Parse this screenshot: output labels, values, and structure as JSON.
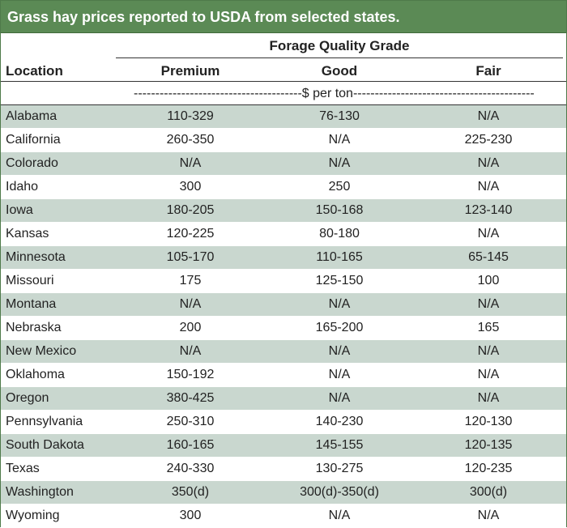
{
  "title": "Grass hay prices reported to USDA from selected states.",
  "header": {
    "group": "Forage Quality Grade",
    "location": "Location",
    "premium": "Premium",
    "good": "Good",
    "fair": "Fair"
  },
  "units": "---------------------------------------$ per ton------------------------------------------",
  "rows": [
    {
      "location": "Alabama",
      "premium": "110-329",
      "good": "76-130",
      "fair": "N/A"
    },
    {
      "location": "California",
      "premium": "260-350",
      "good": "N/A",
      "fair": "225-230"
    },
    {
      "location": "Colorado",
      "premium": "N/A",
      "good": "N/A",
      "fair": "N/A"
    },
    {
      "location": "Idaho",
      "premium": "300",
      "good": "250",
      "fair": "N/A"
    },
    {
      "location": "Iowa",
      "premium": "180-205",
      "good": "150-168",
      "fair": "123-140"
    },
    {
      "location": "Kansas",
      "premium": "120-225",
      "good": "80-180",
      "fair": "N/A"
    },
    {
      "location": "Minnesota",
      "premium": "105-170",
      "good": "110-165",
      "fair": "65-145"
    },
    {
      "location": "Missouri",
      "premium": "175",
      "good": "125-150",
      "fair": "100"
    },
    {
      "location": "Montana",
      "premium": "N/A",
      "good": "N/A",
      "fair": "N/A"
    },
    {
      "location": "Nebraska",
      "premium": "200",
      "good": "165-200",
      "fair": "165"
    },
    {
      "location": "New Mexico",
      "premium": "N/A",
      "good": "N/A",
      "fair": "N/A"
    },
    {
      "location": "Oklahoma",
      "premium": "150-192",
      "good": "N/A",
      "fair": "N/A"
    },
    {
      "location": "Oregon",
      "premium": "380-425",
      "good": "N/A",
      "fair": "N/A"
    },
    {
      "location": "Pennsylvania",
      "premium": "250-310",
      "good": "140-230",
      "fair": "120-130"
    },
    {
      "location": "South Dakota",
      "premium": "160-165",
      "good": "145-155",
      "fair": "120-135"
    },
    {
      "location": "Texas",
      "premium": "240-330",
      "good": "130-275",
      "fair": "120-235"
    },
    {
      "location": "Washington",
      "premium": "350(d)",
      "good": "300(d)-350(d)",
      "fair": "300(d)"
    },
    {
      "location": "Wyoming",
      "premium": "300",
      "good": "N/A",
      "fair": "N/A"
    }
  ]
}
